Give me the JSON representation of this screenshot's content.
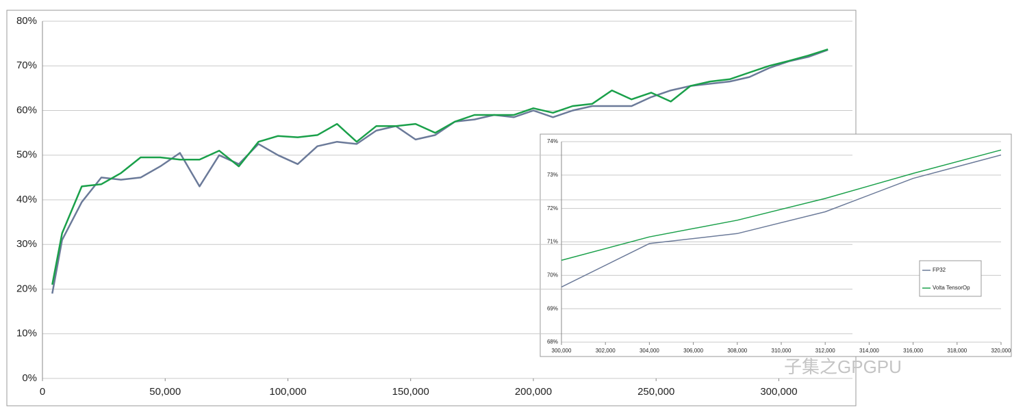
{
  "chart_data": [
    {
      "type": "line",
      "x": [
        4000,
        8000,
        16000,
        24000,
        32000,
        40000,
        48000,
        56000,
        64000,
        72000,
        80000,
        88000,
        96000,
        104000,
        112000,
        120000,
        128000,
        136000,
        144000,
        152000,
        160000,
        168000,
        176000,
        184000,
        192000,
        200000,
        208000,
        216000,
        224000,
        232000,
        240000,
        248000,
        256000,
        264000,
        272000,
        280000,
        288000,
        296000,
        304000,
        312000,
        320000
      ],
      "series": [
        {
          "color": "#6b7a99",
          "values": [
            19,
            31,
            39.5,
            45,
            44.5,
            45,
            47.5,
            50.5,
            43,
            50,
            48,
            52.5,
            50,
            48,
            52,
            53,
            52.5,
            55.5,
            56.5,
            53.5,
            54.5,
            57.5,
            58,
            59,
            58.5,
            60,
            58.5,
            60,
            61,
            61,
            61,
            63,
            64.5,
            65.5,
            66,
            66.5,
            67.5,
            69.5,
            71,
            72,
            73.6
          ]
        },
        {
          "color": "#1aa04a",
          "values": [
            21,
            32.5,
            43,
            43.5,
            46,
            49.5,
            49.5,
            49,
            49,
            51,
            47.5,
            53,
            54.3,
            54,
            54.5,
            57,
            53,
            56.5,
            56.5,
            57,
            55,
            57.5,
            59,
            59,
            59,
            60.5,
            59.5,
            61,
            61.5,
            64.5,
            62.5,
            64,
            62,
            65.5,
            66.5,
            67,
            68.5,
            70,
            71.1,
            72.3,
            73.7
          ]
        }
      ],
      "xlim": [
        0,
        330000
      ],
      "xticks": [
        0,
        {
          "value": 50000,
          "label": "50,000"
        },
        {
          "value": 100000,
          "label": "100,000"
        },
        {
          "value": 150000,
          "label": "150,000"
        },
        {
          "value": 200000,
          "label": "200,000"
        },
        {
          "value": 250000,
          "label": "250,000"
        },
        {
          "value": 300000,
          "label": "300,000"
        }
      ],
      "ylim": [
        0,
        80
      ],
      "yticks": [
        {
          "value": 0,
          "label": "0%"
        },
        {
          "value": 10,
          "label": "10%"
        },
        {
          "value": 20,
          "label": "20%"
        },
        {
          "value": 30,
          "label": "30%"
        },
        {
          "value": 40,
          "label": "40%"
        },
        {
          "value": 50,
          "label": "50%"
        },
        {
          "value": 60,
          "label": "60%"
        },
        {
          "value": 70,
          "label": "70%"
        },
        {
          "value": 80,
          "label": "80%"
        }
      ],
      "grid": true
    },
    {
      "type": "line",
      "x": [
        300000,
        304000,
        308000,
        312000,
        316000,
        320000
      ],
      "series": [
        {
          "name": "FP32",
          "color": "#6b7a99",
          "values": [
            69.65,
            70.95,
            71.25,
            71.9,
            72.9,
            73.6
          ]
        },
        {
          "name": "Volta TensorOp",
          "color": "#1aa04a",
          "values": [
            70.45,
            71.15,
            71.65,
            72.3,
            73.05,
            73.75
          ]
        }
      ],
      "xlim": [
        300000,
        320000
      ],
      "xticks": [
        {
          "value": 300000,
          "label": "300,000"
        },
        {
          "value": 302000,
          "label": "302,000"
        },
        {
          "value": 304000,
          "label": "304,000"
        },
        {
          "value": 306000,
          "label": "306,000"
        },
        {
          "value": 308000,
          "label": "308,000"
        },
        {
          "value": 310000,
          "label": "310,000"
        },
        {
          "value": 312000,
          "label": "312,000"
        },
        {
          "value": 314000,
          "label": "314,000"
        },
        {
          "value": 316000,
          "label": "316,000"
        },
        {
          "value": 318000,
          "label": "318,000"
        },
        {
          "value": 320000,
          "label": "320,000"
        }
      ],
      "ylim": [
        68,
        74
      ],
      "yticks": [
        {
          "value": 68,
          "label": "68%"
        },
        {
          "value": 69,
          "label": "69%"
        },
        {
          "value": 70,
          "label": "70%"
        },
        {
          "value": 71,
          "label": "71%"
        },
        {
          "value": 72,
          "label": "72%"
        },
        {
          "value": 73,
          "label": "73%"
        },
        {
          "value": 74,
          "label": "74%"
        }
      ],
      "grid": true,
      "legend": "right"
    }
  ],
  "watermark": "子集之GPGPU"
}
